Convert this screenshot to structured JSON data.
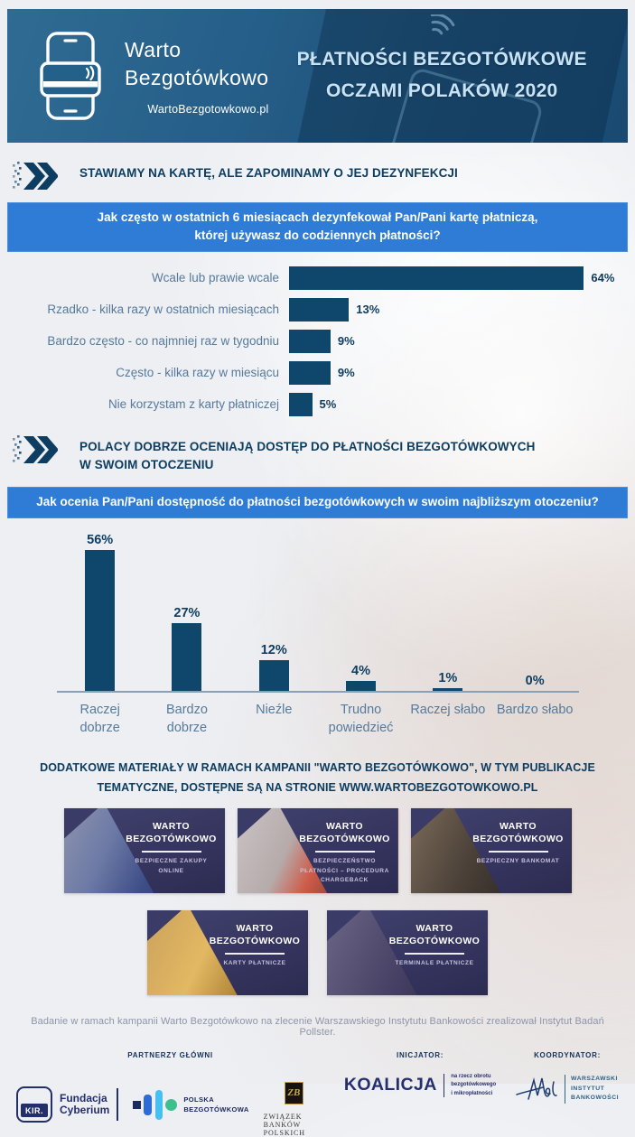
{
  "page": {
    "header": {
      "logo_title_line1": "Warto",
      "logo_title_line2": "Bezgotówkowo",
      "logo_url": "WartoBezgotowkowo.pl",
      "title_line1": "PŁATNOŚCI BEZGOTÓWKOWE",
      "title_line2": "OCZAMI POLAKÓW 2020"
    },
    "section1": {
      "heading": "STAWIAMY NA KARTĘ, ALE ZAPOMINAMY O JEJ DEZYNFEKCJI",
      "question_line1": "Jak często w ostatnich 6 miesiącach dezynfekował Pan/Pani kartę płatniczą,",
      "question_line2": "której używasz do codziennych płatności?"
    },
    "section2": {
      "heading_line1": "POLACY DOBRZE OCENIAJĄ DOSTĘP DO PŁATNOŚCI BEZGOTÓWKOWYCH",
      "heading_line2": "W SWOIM OTOCZENIU",
      "question": "Jak ocenia Pan/Pani dostępność do płatności bezgotówkowych w swoim najbliższym otoczeniu?"
    },
    "materials": {
      "heading_line1": "DODATKOWE MATERIAŁY W RAMACH KAMPANII \"WARTO BEZGOTÓWKOWO\", W TYM PUBLIKACJE",
      "heading_line2": "TEMATYCZNE, DOSTĘPNE SĄ NA STRONIE WWW.WARTOBEZGOTOWKOWO.PL",
      "cards": [
        {
          "title": "WARTO BEZGOTÓWKOWO",
          "subtitle": "BEZPIECZNE ZAKUPY ONLINE"
        },
        {
          "title": "WARTO BEZGOTÓWKOWO",
          "subtitle": "BEZPIECZEŃSTWO PŁATNOŚCI – PROCEDURA CHARGEBACK"
        },
        {
          "title": "WARTO BEZGOTÓWKOWO",
          "subtitle": "BEZPIECZNY BANKOMAT"
        },
        {
          "title": "WARTO BEZGOTÓWKOWO",
          "subtitle": "KARTY PŁATNICZE"
        },
        {
          "title": "WARTO BEZGOTÓWKOWO",
          "subtitle": "TERMINALE PŁATNICZE"
        }
      ]
    },
    "footer": {
      "disclaimer": "Badanie w ramach kampanii Warto Bezgotówkowo na zlecenie Warszawskiego Instytutu Bankowości zrealizował Instytut Badań Pollster.",
      "partners_label": "PARTNERZY GŁÓWNI",
      "initiator_label": "INICJATOR:",
      "coordinator_label": "KOORDYNATOR:",
      "logos": {
        "kir": "KIR.",
        "cyberium_line1": "Fundacja",
        "cyberium_line2": "Cyberium",
        "polska_bezgotowkowa_line1": "POLSKA",
        "polska_bezgotowkowa_line2": "BEZGOTÓWKOWA",
        "zbp_emblem": "ZB",
        "zbp_name": "ZWIĄZEK BANKÓW POLSKICH",
        "koalicja": "KOALICJA",
        "koalicja_sub_line1": "na rzecz obrotu",
        "koalicja_sub_line2": "bezgotówkowego",
        "koalicja_sub_line3": "i mikropłatności",
        "wib_line1": "WARSZAWSKI",
        "wib_line2": "INSTYTUT",
        "wib_line3": "BANKOWOŚCI"
      }
    },
    "colors": {
      "accent_banner_blue": "#2e7cd6",
      "heading_navy": "#0d3d60",
      "bar_navy": "#0f466b",
      "category_label_steel_blue": "#567a9b",
      "header_background_blue": "#1e5078"
    }
  },
  "chart_data": [
    {
      "type": "bar",
      "orientation": "horizontal",
      "title": "Jak często w ostatnich 6 miesiącach dezynfekował Pan/Pani kartę płatniczą, której używasz do codziennych płatności?",
      "categories": [
        "Wcale lub prawie wcale",
        "Rzadko - kilka razy w ostatnich miesiącach",
        "Bardzo często - co najmniej raz w tygodniu",
        "Często - kilka razy w miesiącu",
        "Nie korzystam z karty płatniczej"
      ],
      "values": [
        64,
        13,
        9,
        9,
        5
      ],
      "data_labels": [
        "64%",
        "13%",
        "9%",
        "9%",
        "5%"
      ],
      "unit": "%",
      "xlim": [
        0,
        66
      ],
      "grid": false,
      "legend": false
    },
    {
      "type": "bar",
      "orientation": "vertical",
      "title": "Jak ocenia Pan/Pani dostępność do płatności bezgotówkowych w swoim najbliższym otoczeniu?",
      "categories": [
        "Raczej dobrze",
        "Bardzo dobrze",
        "Nieźle",
        "Trudno powiedzieć",
        "Raczej słabo",
        "Bardzo słabo"
      ],
      "values": [
        56,
        27,
        12,
        4,
        1,
        0
      ],
      "data_labels": [
        "56%",
        "27%",
        "12%",
        "4%",
        "1%",
        "0%"
      ],
      "unit": "%",
      "ylim": [
        0,
        60
      ],
      "grid": false,
      "legend": false
    }
  ]
}
